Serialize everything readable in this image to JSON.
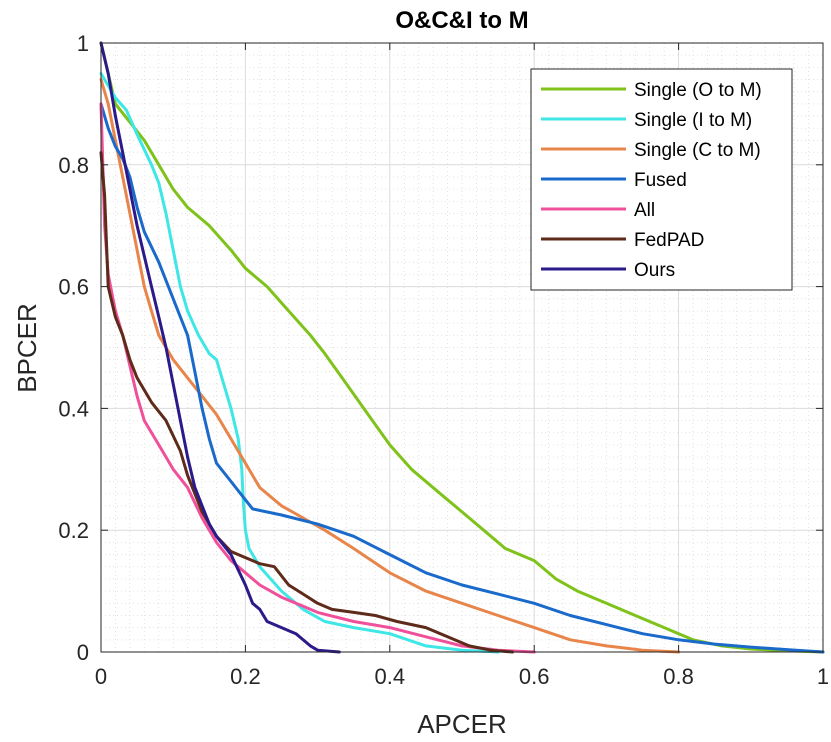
{
  "chart_data": {
    "type": "line",
    "title": "O&C&I to M",
    "xlabel": "APCER",
    "ylabel": "BPCER",
    "xlim": [
      0,
      1
    ],
    "ylim": [
      0,
      1
    ],
    "xticks": [
      "0",
      "0.2",
      "0.4",
      "0.6",
      "0.8",
      "1"
    ],
    "yticks": [
      "0",
      "0.2",
      "0.4",
      "0.6",
      "0.8",
      "1"
    ],
    "grid": true,
    "legend_position": "top-right",
    "series": [
      {
        "name": "Single (O to M)",
        "color": "#7ec21a",
        "points": [
          [
            0,
            1
          ],
          [
            0.01,
            0.95
          ],
          [
            0.02,
            0.9
          ],
          [
            0.04,
            0.87
          ],
          [
            0.06,
            0.84
          ],
          [
            0.08,
            0.8
          ],
          [
            0.1,
            0.76
          ],
          [
            0.12,
            0.73
          ],
          [
            0.15,
            0.7
          ],
          [
            0.18,
            0.66
          ],
          [
            0.2,
            0.63
          ],
          [
            0.23,
            0.6
          ],
          [
            0.26,
            0.56
          ],
          [
            0.29,
            0.52
          ],
          [
            0.31,
            0.49
          ],
          [
            0.34,
            0.44
          ],
          [
            0.37,
            0.39
          ],
          [
            0.4,
            0.34
          ],
          [
            0.43,
            0.3
          ],
          [
            0.47,
            0.26
          ],
          [
            0.5,
            0.23
          ],
          [
            0.53,
            0.2
          ],
          [
            0.56,
            0.17
          ],
          [
            0.6,
            0.15
          ],
          [
            0.63,
            0.12
          ],
          [
            0.66,
            0.1
          ],
          [
            0.7,
            0.08
          ],
          [
            0.74,
            0.06
          ],
          [
            0.78,
            0.04
          ],
          [
            0.82,
            0.02
          ],
          [
            0.86,
            0.01
          ],
          [
            0.9,
            0.005
          ],
          [
            0.95,
            0.002
          ],
          [
            1,
            0
          ]
        ]
      },
      {
        "name": "Single (I to M)",
        "color": "#3ee6e6",
        "points": [
          [
            0,
            0.95
          ],
          [
            0.01,
            0.93
          ],
          [
            0.02,
            0.91
          ],
          [
            0.035,
            0.89
          ],
          [
            0.05,
            0.85
          ],
          [
            0.07,
            0.8
          ],
          [
            0.08,
            0.77
          ],
          [
            0.09,
            0.72
          ],
          [
            0.1,
            0.66
          ],
          [
            0.11,
            0.6
          ],
          [
            0.12,
            0.56
          ],
          [
            0.135,
            0.52
          ],
          [
            0.15,
            0.49
          ],
          [
            0.16,
            0.48
          ],
          [
            0.17,
            0.44
          ],
          [
            0.18,
            0.4
          ],
          [
            0.19,
            0.35
          ],
          [
            0.195,
            0.3
          ],
          [
            0.197,
            0.25
          ],
          [
            0.2,
            0.2
          ],
          [
            0.205,
            0.17
          ],
          [
            0.22,
            0.14
          ],
          [
            0.25,
            0.1
          ],
          [
            0.28,
            0.07
          ],
          [
            0.31,
            0.05
          ],
          [
            0.35,
            0.04
          ],
          [
            0.4,
            0.03
          ],
          [
            0.45,
            0.01
          ],
          [
            0.5,
            0.003
          ],
          [
            0.55,
            0
          ]
        ]
      },
      {
        "name": "Single (C to M)",
        "color": "#e8854a",
        "points": [
          [
            0,
            0.94
          ],
          [
            0.01,
            0.9
          ],
          [
            0.02,
            0.84
          ],
          [
            0.03,
            0.78
          ],
          [
            0.04,
            0.72
          ],
          [
            0.05,
            0.66
          ],
          [
            0.06,
            0.6
          ],
          [
            0.07,
            0.56
          ],
          [
            0.08,
            0.52
          ],
          [
            0.1,
            0.48
          ],
          [
            0.12,
            0.45
          ],
          [
            0.14,
            0.42
          ],
          [
            0.16,
            0.39
          ],
          [
            0.18,
            0.35
          ],
          [
            0.2,
            0.31
          ],
          [
            0.22,
            0.27
          ],
          [
            0.25,
            0.24
          ],
          [
            0.28,
            0.22
          ],
          [
            0.31,
            0.2
          ],
          [
            0.35,
            0.17
          ],
          [
            0.4,
            0.13
          ],
          [
            0.45,
            0.1
          ],
          [
            0.5,
            0.08
          ],
          [
            0.55,
            0.06
          ],
          [
            0.6,
            0.04
          ],
          [
            0.65,
            0.02
          ],
          [
            0.7,
            0.01
          ],
          [
            0.75,
            0.003
          ],
          [
            0.8,
            0
          ]
        ]
      },
      {
        "name": "Fused",
        "color": "#1a6acc",
        "points": [
          [
            0,
            0.9
          ],
          [
            0.01,
            0.86
          ],
          [
            0.02,
            0.83
          ],
          [
            0.03,
            0.81
          ],
          [
            0.04,
            0.78
          ],
          [
            0.05,
            0.73
          ],
          [
            0.06,
            0.69
          ],
          [
            0.08,
            0.64
          ],
          [
            0.1,
            0.58
          ],
          [
            0.12,
            0.52
          ],
          [
            0.13,
            0.46
          ],
          [
            0.14,
            0.4
          ],
          [
            0.15,
            0.35
          ],
          [
            0.16,
            0.31
          ],
          [
            0.18,
            0.28
          ],
          [
            0.2,
            0.25
          ],
          [
            0.21,
            0.235
          ],
          [
            0.25,
            0.225
          ],
          [
            0.3,
            0.21
          ],
          [
            0.35,
            0.19
          ],
          [
            0.4,
            0.16
          ],
          [
            0.45,
            0.13
          ],
          [
            0.5,
            0.11
          ],
          [
            0.55,
            0.095
          ],
          [
            0.6,
            0.08
          ],
          [
            0.65,
            0.06
          ],
          [
            0.7,
            0.045
          ],
          [
            0.75,
            0.03
          ],
          [
            0.8,
            0.02
          ],
          [
            0.85,
            0.013
          ],
          [
            0.9,
            0.008
          ],
          [
            0.95,
            0.004
          ],
          [
            1,
            0
          ]
        ]
      },
      {
        "name": "All",
        "color": "#f0509a",
        "points": [
          [
            0,
            0.9
          ],
          [
            0.005,
            0.7
          ],
          [
            0.01,
            0.62
          ],
          [
            0.02,
            0.56
          ],
          [
            0.03,
            0.52
          ],
          [
            0.04,
            0.47
          ],
          [
            0.05,
            0.42
          ],
          [
            0.06,
            0.38
          ],
          [
            0.08,
            0.34
          ],
          [
            0.1,
            0.3
          ],
          [
            0.12,
            0.27
          ],
          [
            0.14,
            0.22
          ],
          [
            0.16,
            0.18
          ],
          [
            0.18,
            0.15
          ],
          [
            0.2,
            0.13
          ],
          [
            0.22,
            0.11
          ],
          [
            0.25,
            0.09
          ],
          [
            0.28,
            0.075
          ],
          [
            0.3,
            0.065
          ],
          [
            0.35,
            0.05
          ],
          [
            0.4,
            0.04
          ],
          [
            0.45,
            0.025
          ],
          [
            0.5,
            0.01
          ],
          [
            0.55,
            0.003
          ],
          [
            0.6,
            0
          ]
        ]
      },
      {
        "name": "FedPAD",
        "color": "#5e2a1a",
        "points": [
          [
            0,
            0.82
          ],
          [
            0.005,
            0.75
          ],
          [
            0.01,
            0.6
          ],
          [
            0.02,
            0.55
          ],
          [
            0.03,
            0.52
          ],
          [
            0.04,
            0.48
          ],
          [
            0.05,
            0.45
          ],
          [
            0.07,
            0.41
          ],
          [
            0.09,
            0.38
          ],
          [
            0.11,
            0.33
          ],
          [
            0.12,
            0.29
          ],
          [
            0.13,
            0.26
          ],
          [
            0.14,
            0.23
          ],
          [
            0.16,
            0.19
          ],
          [
            0.18,
            0.165
          ],
          [
            0.2,
            0.155
          ],
          [
            0.22,
            0.145
          ],
          [
            0.24,
            0.14
          ],
          [
            0.26,
            0.11
          ],
          [
            0.28,
            0.095
          ],
          [
            0.3,
            0.08
          ],
          [
            0.32,
            0.07
          ],
          [
            0.35,
            0.065
          ],
          [
            0.38,
            0.06
          ],
          [
            0.41,
            0.05
          ],
          [
            0.45,
            0.04
          ],
          [
            0.48,
            0.025
          ],
          [
            0.51,
            0.01
          ],
          [
            0.54,
            0.003
          ],
          [
            0.57,
            0
          ]
        ]
      },
      {
        "name": "Ours",
        "color": "#2a1a8a",
        "points": [
          [
            0,
            1
          ],
          [
            0.01,
            0.95
          ],
          [
            0.02,
            0.88
          ],
          [
            0.03,
            0.82
          ],
          [
            0.04,
            0.76
          ],
          [
            0.05,
            0.7
          ],
          [
            0.06,
            0.65
          ],
          [
            0.07,
            0.6
          ],
          [
            0.08,
            0.55
          ],
          [
            0.09,
            0.5
          ],
          [
            0.1,
            0.44
          ],
          [
            0.11,
            0.38
          ],
          [
            0.12,
            0.32
          ],
          [
            0.13,
            0.27
          ],
          [
            0.14,
            0.24
          ],
          [
            0.15,
            0.21
          ],
          [
            0.16,
            0.19
          ],
          [
            0.18,
            0.16
          ],
          [
            0.19,
            0.135
          ],
          [
            0.2,
            0.11
          ],
          [
            0.21,
            0.08
          ],
          [
            0.22,
            0.07
          ],
          [
            0.23,
            0.05
          ],
          [
            0.25,
            0.04
          ],
          [
            0.27,
            0.03
          ],
          [
            0.29,
            0.01
          ],
          [
            0.3,
            0.003
          ],
          [
            0.33,
            0
          ]
        ]
      }
    ]
  }
}
